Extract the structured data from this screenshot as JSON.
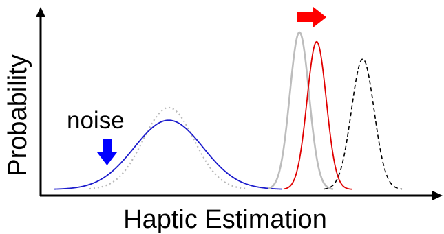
{
  "labels": {
    "xlabel": "Haptic Estimation",
    "ylabel": "Probability",
    "noise": "noise"
  },
  "colors": {
    "axis": "#000000",
    "noise_arrow": "#0000ff",
    "shift_arrow": "#ff0000"
  },
  "curves": [
    {
      "id": "low-reliability-prior",
      "color": "#b8b8b8",
      "dash": "dotted",
      "mean": 245,
      "sd": 37,
      "peak": 0.52
    },
    {
      "id": "low-reliability-noisy",
      "color": "#1a1acc",
      "dash": "solid",
      "mean": 245,
      "sd": 50,
      "peak": 0.44
    },
    {
      "id": "high-reliability-prior",
      "color": "#bdbdbd",
      "dash": "solid",
      "mean": 435,
      "sd": 14,
      "peak": 1.0
    },
    {
      "id": "high-reliability-shifted",
      "color": "#e00000",
      "dash": "solid",
      "mean": 460,
      "sd": 14,
      "peak": 0.94
    },
    {
      "id": "reference",
      "color": "#000000",
      "dash": "dashed",
      "mean": 527,
      "sd": 16.5,
      "peak": 0.83
    }
  ]
}
